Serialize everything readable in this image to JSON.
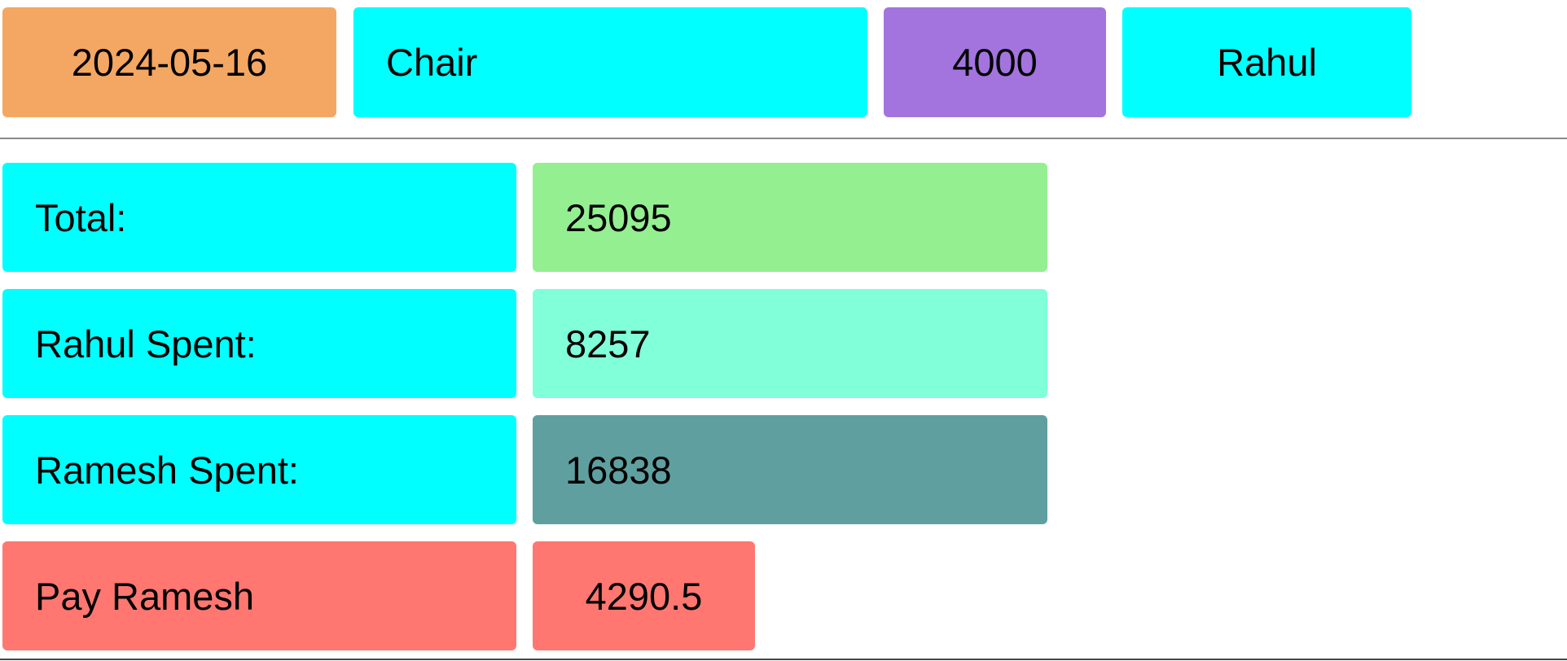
{
  "entry": {
    "date": "2024-05-16",
    "item": "Chair",
    "amount": "4000",
    "person": "Rahul"
  },
  "summary": {
    "total_label": "Total:",
    "total_value": "25095",
    "rahul_label": "Rahul Spent:",
    "rahul_value": "8257",
    "ramesh_label": "Ramesh Spent:",
    "ramesh_value": "16838",
    "pay_label": "Pay Ramesh",
    "pay_value": "4290.5"
  },
  "colors": {
    "date_bg": "#f4a762",
    "cyan": "#00ffff",
    "amount_bg": "#a374de",
    "total_value_bg": "#94ef91",
    "rahul_value_bg": "#80ffd8",
    "ramesh_value_bg": "#5f9fa0",
    "pay_bg": "#ff7770"
  }
}
